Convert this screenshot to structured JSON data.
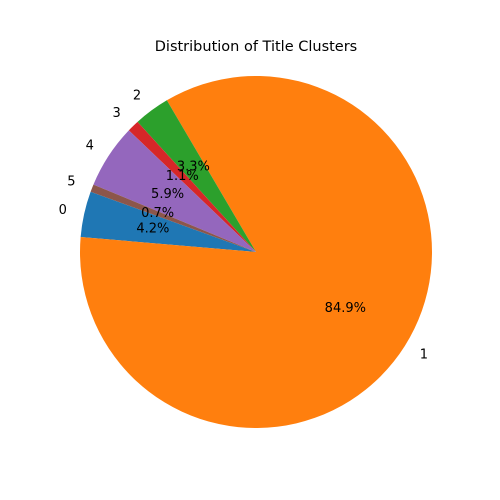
{
  "chart_data": {
    "type": "pie",
    "title": "Distribution of Title Clusters",
    "start_angle_deg": 160,
    "direction": "counterclockwise",
    "slices": [
      {
        "label": "0",
        "value": 4.2,
        "pct_text": "4.2%",
        "color": "#1f77b4"
      },
      {
        "label": "1",
        "value": 84.9,
        "pct_text": "84.9%",
        "color": "#ff7f0e"
      },
      {
        "label": "2",
        "value": 3.3,
        "pct_text": "3.3%",
        "color": "#2ca02c"
      },
      {
        "label": "3",
        "value": 1.1,
        "pct_text": "1.1%",
        "color": "#d62728"
      },
      {
        "label": "4",
        "value": 5.9,
        "pct_text": "5.9%",
        "color": "#9467bd"
      },
      {
        "label": "5",
        "value": 0.7,
        "pct_text": "0.7%",
        "color": "#8c564b"
      }
    ]
  }
}
